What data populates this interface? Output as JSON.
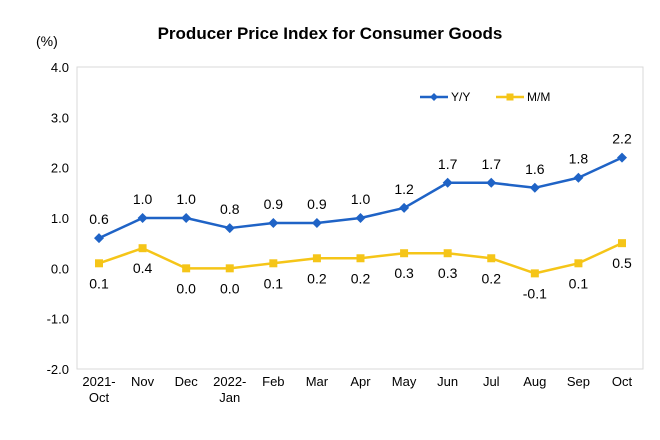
{
  "chart_data": {
    "type": "line",
    "title": "Producer Price Index for Consumer Goods",
    "unit_label": "(%)",
    "categories": [
      [
        "2021-",
        "Oct"
      ],
      [
        "Nov"
      ],
      [
        "Dec"
      ],
      [
        "2022-",
        "Jan"
      ],
      [
        "Feb"
      ],
      [
        "Mar"
      ],
      [
        "Apr"
      ],
      [
        "May"
      ],
      [
        "Jun"
      ],
      [
        "Jul"
      ],
      [
        "Aug"
      ],
      [
        "Sep"
      ],
      [
        "Oct"
      ]
    ],
    "y_ticks": [
      "4.0",
      "3.0",
      "2.0",
      "1.0",
      "0.0",
      "-1.0",
      "-2.0"
    ],
    "ylim": [
      -2.0,
      4.0
    ],
    "grid": false,
    "legend_position": "top-right",
    "series": [
      {
        "name": "Y/Y",
        "color": "#1f63c6",
        "marker": "diamond",
        "values": [
          0.6,
          1.0,
          1.0,
          0.8,
          0.9,
          0.9,
          1.0,
          1.2,
          1.7,
          1.7,
          1.6,
          1.8,
          2.2
        ],
        "labels": [
          "0.6",
          "1.0",
          "1.0",
          "0.8",
          "0.9",
          "0.9",
          "1.0",
          "1.2",
          "1.7",
          "1.7",
          "1.6",
          "1.8",
          "2.2"
        ]
      },
      {
        "name": "M/M",
        "color": "#f5c518",
        "marker": "square",
        "values": [
          0.1,
          0.4,
          0.0,
          0.0,
          0.1,
          0.2,
          0.2,
          0.3,
          0.3,
          0.2,
          -0.1,
          0.1,
          0.5
        ],
        "labels": [
          "0.1",
          "0.4",
          "0.0",
          "0.0",
          "0.1",
          "0.2",
          "0.2",
          "0.3",
          "0.3",
          "0.2",
          "-0.1",
          "0.1",
          "0.5"
        ]
      }
    ]
  }
}
